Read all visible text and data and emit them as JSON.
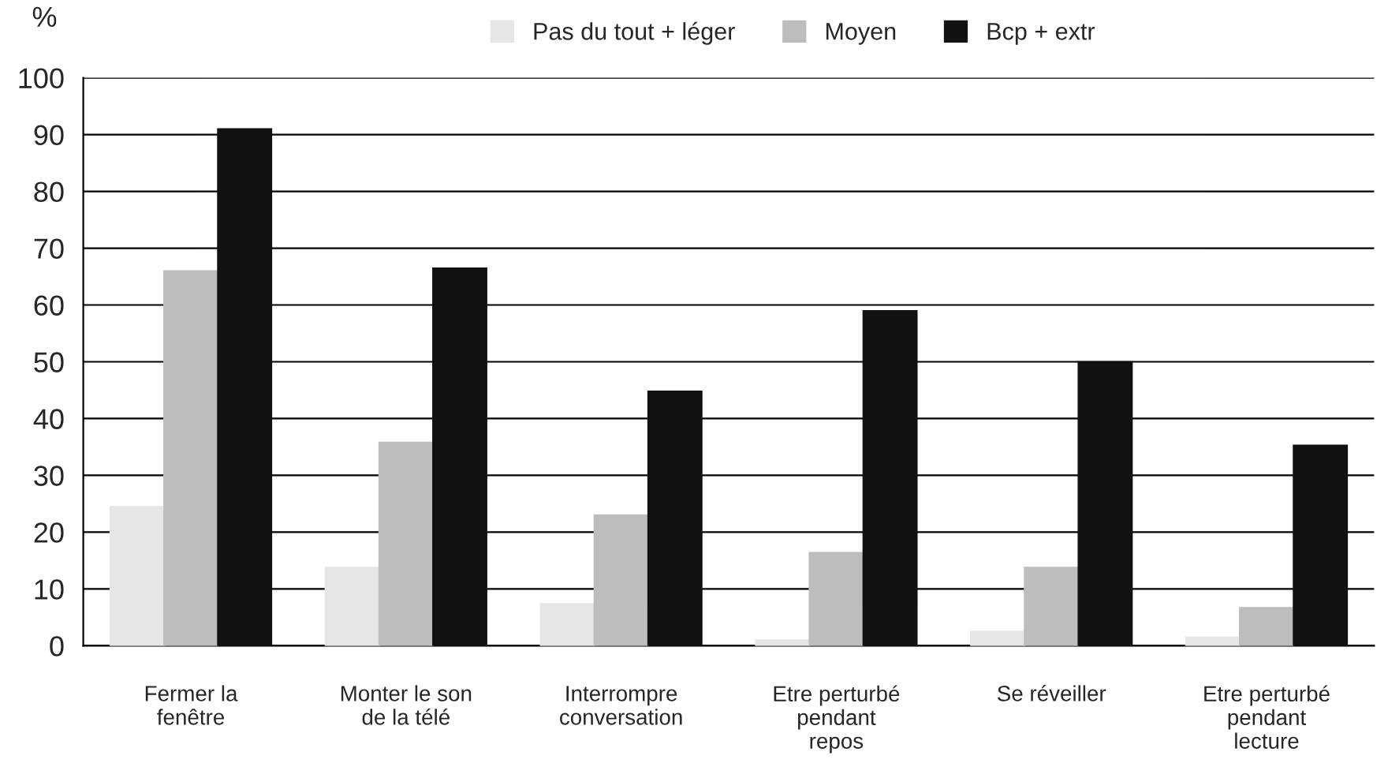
{
  "chart_data": {
    "type": "bar",
    "ylabel": "%",
    "categories": [
      "Fermer la\nfenêtre",
      "Monter le son\nde la télé",
      "Interrompre\nconversation",
      "Etre perturbé\npendant\nrepos",
      "Se réveiller",
      "Etre perturbé\npendant\nlecture"
    ],
    "series": [
      {
        "name": "Pas du tout + léger",
        "color": "#e6e6e6",
        "values": [
          24.5,
          13.8,
          7.4,
          1.0,
          2.5,
          1.5
        ]
      },
      {
        "name": "Moyen",
        "color": "#bdbdbd",
        "values": [
          66,
          35.8,
          23,
          16.4,
          13.8,
          6.7
        ]
      },
      {
        "name": "Bcp + extr",
        "color": "#111111",
        "values": [
          91,
          66.5,
          44.8,
          59,
          50,
          35.3
        ]
      }
    ],
    "ylim": [
      0,
      100
    ],
    "yticks": [
      0,
      10,
      20,
      30,
      40,
      50,
      60,
      70,
      80,
      90,
      100
    ],
    "grid": "y",
    "legend": "top"
  }
}
